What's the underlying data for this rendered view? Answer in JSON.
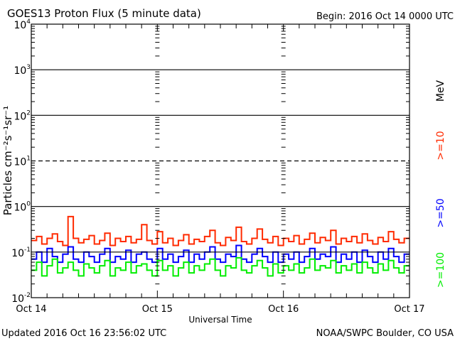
{
  "chart_data": {
    "type": "line",
    "title": "GOES13 Proton Flux (5 minute data)",
    "begin_label": "Begin: 2016 Oct 14 0000 UTC",
    "xlabel": "Universal Time",
    "ylabel": "Particles cm⁻²s⁻¹sr⁻¹",
    "y_scale": "log",
    "ylim": [
      0.01,
      10000
    ],
    "y_ticks": [
      {
        "base": "10",
        "exp": "4"
      },
      {
        "base": "10",
        "exp": "3"
      },
      {
        "base": "10",
        "exp": "2"
      },
      {
        "base": "10",
        "exp": "1"
      },
      {
        "base": "10",
        "exp": "0"
      },
      {
        "base": "10",
        "exp": "-1"
      },
      {
        "base": "10",
        "exp": "-2"
      }
    ],
    "x_ticks": [
      "Oct 14",
      "Oct 15",
      "Oct 16",
      "Oct 17"
    ],
    "x_range_hours": [
      0,
      72
    ],
    "x_start": "2016-10-14 00:00 UTC",
    "x_step": "1 hour",
    "series": [
      {
        "name": ">=10",
        "color": "#ff2a00",
        "values": [
          0.18,
          0.22,
          0.15,
          0.2,
          0.25,
          0.17,
          0.14,
          0.6,
          0.2,
          0.16,
          0.19,
          0.23,
          0.15,
          0.18,
          0.26,
          0.14,
          0.2,
          0.17,
          0.22,
          0.16,
          0.19,
          0.4,
          0.18,
          0.15,
          0.28,
          0.16,
          0.2,
          0.14,
          0.18,
          0.24,
          0.15,
          0.19,
          0.17,
          0.22,
          0.3,
          0.16,
          0.14,
          0.21,
          0.18,
          0.35,
          0.17,
          0.15,
          0.2,
          0.32,
          0.19,
          0.16,
          0.22,
          0.14,
          0.2,
          0.17,
          0.23,
          0.15,
          0.19,
          0.26,
          0.16,
          0.21,
          0.18,
          0.3,
          0.15,
          0.2,
          0.17,
          0.22,
          0.16,
          0.25,
          0.18,
          0.15,
          0.21,
          0.17,
          0.28,
          0.19,
          0.16,
          0.2
        ]
      },
      {
        "name": ">=50",
        "color": "#0000ff",
        "values": [
          0.07,
          0.1,
          0.06,
          0.12,
          0.08,
          0.06,
          0.09,
          0.13,
          0.07,
          0.06,
          0.1,
          0.08,
          0.06,
          0.09,
          0.12,
          0.06,
          0.08,
          0.07,
          0.11,
          0.06,
          0.09,
          0.1,
          0.07,
          0.06,
          0.12,
          0.07,
          0.09,
          0.06,
          0.08,
          0.11,
          0.06,
          0.09,
          0.07,
          0.1,
          0.13,
          0.07,
          0.06,
          0.09,
          0.08,
          0.14,
          0.07,
          0.06,
          0.09,
          0.12,
          0.08,
          0.06,
          0.1,
          0.06,
          0.09,
          0.07,
          0.1,
          0.06,
          0.08,
          0.12,
          0.07,
          0.09,
          0.08,
          0.13,
          0.06,
          0.09,
          0.07,
          0.1,
          0.06,
          0.11,
          0.08,
          0.06,
          0.1,
          0.07,
          0.12,
          0.08,
          0.06,
          0.09
        ]
      },
      {
        "name": ">=100",
        "color": "#00ee00",
        "values": [
          0.04,
          0.06,
          0.03,
          0.05,
          0.07,
          0.035,
          0.045,
          0.06,
          0.04,
          0.03,
          0.055,
          0.045,
          0.035,
          0.05,
          0.065,
          0.03,
          0.045,
          0.04,
          0.06,
          0.035,
          0.05,
          0.055,
          0.04,
          0.03,
          0.065,
          0.04,
          0.05,
          0.03,
          0.045,
          0.06,
          0.035,
          0.05,
          0.04,
          0.055,
          0.07,
          0.04,
          0.03,
          0.05,
          0.045,
          0.075,
          0.04,
          0.035,
          0.05,
          0.065,
          0.045,
          0.03,
          0.055,
          0.035,
          0.05,
          0.04,
          0.055,
          0.035,
          0.045,
          0.07,
          0.04,
          0.05,
          0.045,
          0.065,
          0.035,
          0.05,
          0.04,
          0.055,
          0.035,
          0.06,
          0.045,
          0.035,
          0.055,
          0.04,
          0.065,
          0.045,
          0.035,
          0.05
        ]
      }
    ],
    "legend_unit": "MeV",
    "legend_placement": "right",
    "grid": "horizontal lines at decades, dashed at 10^1"
  },
  "footer": {
    "updated": "Updated 2016 Oct 16 23:56:02 UTC",
    "credit": "NOAA/SWPC Boulder, CO USA"
  }
}
